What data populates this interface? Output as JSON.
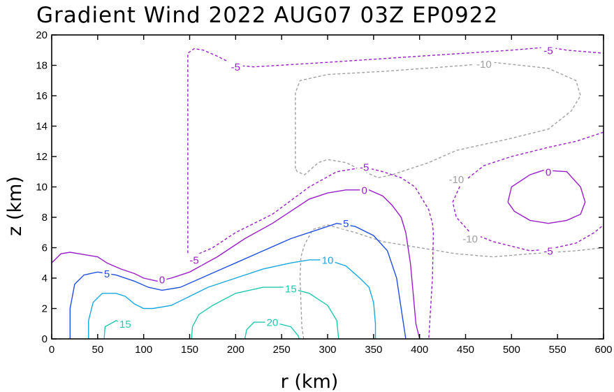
{
  "chart_data": {
    "type": "contour",
    "title": "Gradient Wind 2022 AUG07 03Z  EP0922",
    "xlabel": "r (km)",
    "ylabel": "z (km)",
    "xlim": [
      0,
      600
    ],
    "ylim": [
      0,
      20
    ],
    "xticks": [
      0,
      50,
      100,
      150,
      200,
      250,
      300,
      350,
      400,
      450,
      500,
      550,
      600
    ],
    "yticks": [
      0,
      2,
      4,
      6,
      8,
      10,
      12,
      14,
      16,
      18,
      20
    ],
    "grid": false,
    "levels": [
      {
        "value": -10,
        "label": "-10",
        "color": "#a0a0a0",
        "dashed": true,
        "paths": [
          [
            [
              265,
              11.2
            ],
            [
              265,
              16.2
            ],
            [
              270,
              17.0
            ],
            [
              300,
              17.4
            ],
            [
              360,
              17.6
            ],
            [
              450,
              18.0
            ],
            [
              480,
              18.2
            ],
            [
              540,
              17.8
            ],
            [
              570,
              17.0
            ],
            [
              575,
              16.0
            ],
            [
              565,
              15.0
            ],
            [
              540,
              13.8
            ],
            [
              500,
              13.2
            ],
            [
              470,
              12.8
            ],
            [
              440,
              12.4
            ],
            [
              410,
              11.6
            ],
            [
              390,
              11.2
            ],
            [
              370,
              10.8
            ],
            [
              355,
              10.6
            ],
            [
              340,
              11.0
            ],
            [
              320,
              11.6
            ],
            [
              300,
              11.8
            ],
            [
              290,
              11.6
            ],
            [
              275,
              10.8
            ],
            [
              267,
              11.0
            ],
            [
              265,
              11.2
            ]
          ],
          [
            [
              274,
              0
            ],
            [
              272,
              0.8
            ],
            [
              271,
              2.4
            ],
            [
              270,
              4.0
            ],
            [
              271,
              5.4
            ],
            [
              275,
              6.2
            ],
            [
              284,
              7.2
            ],
            [
              300,
              7.5
            ],
            [
              330,
              7.0
            ],
            [
              360,
              6.4
            ],
            [
              400,
              6.0
            ],
            [
              440,
              5.6
            ],
            [
              480,
              5.4
            ],
            [
              520,
              5.6
            ],
            [
              570,
              5.8
            ],
            [
              600,
              6.0
            ]
          ]
        ]
      },
      {
        "value": -5,
        "label": "-5",
        "color": "#9a1ec8",
        "dashed": true,
        "paths": [
          [
            [
              148,
              5.0
            ],
            [
              148,
              12.0
            ],
            [
              148,
              18.8
            ],
            [
              155,
              19.1
            ],
            [
              165,
              19.0
            ],
            [
              180,
              18.6
            ],
            [
              200,
              18.0
            ],
            [
              220,
              17.9
            ],
            [
              300,
              18.2
            ],
            [
              400,
              18.6
            ],
            [
              450,
              18.8
            ],
            [
              500,
              19.0
            ],
            [
              540,
              19.2
            ],
            [
              560,
              19.0
            ],
            [
              600,
              18.8
            ]
          ],
          [
            [
              148,
              5.0
            ],
            [
              153,
              5.2
            ],
            [
              160,
              5.6
            ],
            [
              175,
              6.0
            ],
            [
              200,
              7.0
            ],
            [
              240,
              8.2
            ],
            [
              280,
              10.0
            ],
            [
              310,
              11.0
            ],
            [
              340,
              11.3
            ],
            [
              360,
              11.0
            ],
            [
              380,
              10.6
            ],
            [
              395,
              10.0
            ],
            [
              410,
              8.5
            ],
            [
              414,
              7.6
            ],
            [
              415,
              7.0
            ],
            [
              414,
              4.0
            ],
            [
              410,
              0.0
            ]
          ],
          [
            [
              600,
              13.6
            ],
            [
              570,
              13.0
            ],
            [
              540,
              12.6
            ],
            [
              500,
              12.0
            ],
            [
              470,
              11.4
            ],
            [
              445,
              10.2
            ],
            [
              436,
              9.0
            ],
            [
              440,
              8.0
            ],
            [
              455,
              7.0
            ],
            [
              480,
              6.4
            ],
            [
              520,
              5.8
            ],
            [
              540,
              5.9
            ],
            [
              570,
              6.3
            ],
            [
              590,
              7.0
            ],
            [
              600,
              7.5
            ]
          ]
        ]
      },
      {
        "value": 0,
        "label": "0",
        "color": "#9a1ec8",
        "dashed": false,
        "paths": [
          [
            [
              0,
              5.0
            ],
            [
              10,
              5.6
            ],
            [
              20,
              5.7
            ],
            [
              30,
              5.6
            ],
            [
              40,
              5.5
            ],
            [
              50,
              5.4
            ],
            [
              60,
              5.0
            ],
            [
              75,
              4.6
            ],
            [
              90,
              4.3
            ],
            [
              100,
              4.0
            ],
            [
              115,
              3.8
            ],
            [
              130,
              4.0
            ],
            [
              150,
              4.4
            ],
            [
              180,
              5.4
            ],
            [
              210,
              6.6
            ],
            [
              240,
              7.6
            ],
            [
              260,
              8.4
            ],
            [
              280,
              9.2
            ],
            [
              300,
              9.6
            ],
            [
              320,
              9.8
            ],
            [
              345,
              9.8
            ],
            [
              360,
              9.4
            ],
            [
              370,
              8.8
            ],
            [
              380,
              8.0
            ],
            [
              385,
              7.0
            ],
            [
              390,
              5.0
            ],
            [
              393,
              3.0
            ],
            [
              396,
              1.0
            ],
            [
              400,
              0.0
            ]
          ],
          [
            [
              496,
              9.0
            ],
            [
              500,
              10.0
            ],
            [
              520,
              10.8
            ],
            [
              535,
              11.1
            ],
            [
              560,
              11.0
            ],
            [
              575,
              10.0
            ],
            [
              580,
              9.0
            ],
            [
              575,
              8.2
            ],
            [
              560,
              7.8
            ],
            [
              540,
              7.6
            ],
            [
              520,
              7.8
            ],
            [
              503,
              8.4
            ],
            [
              496,
              9.0
            ]
          ]
        ]
      },
      {
        "value": 5,
        "label": "5",
        "color": "#2050e0",
        "dashed": false,
        "paths": [
          [
            [
              20,
              0.0
            ],
            [
              20,
              2.0
            ],
            [
              25,
              3.6
            ],
            [
              35,
              4.2
            ],
            [
              50,
              4.4
            ],
            [
              70,
              4.2
            ],
            [
              90,
              3.8
            ],
            [
              105,
              3.4
            ],
            [
              120,
              3.2
            ],
            [
              140,
              3.4
            ],
            [
              170,
              4.2
            ],
            [
              200,
              5.0
            ],
            [
              230,
              5.8
            ],
            [
              260,
              6.6
            ],
            [
              290,
              7.2
            ],
            [
              310,
              7.6
            ],
            [
              330,
              7.4
            ],
            [
              350,
              6.8
            ],
            [
              365,
              5.8
            ],
            [
              375,
              4.0
            ],
            [
              380,
              2.0
            ],
            [
              385,
              0.0
            ]
          ]
        ]
      },
      {
        "value": 10,
        "label": "10",
        "color": "#18a8e0",
        "dashed": false,
        "paths": [
          [
            [
              40,
              0.0
            ],
            [
              40,
              1.2
            ],
            [
              45,
              2.4
            ],
            [
              55,
              3.0
            ],
            [
              70,
              3.0
            ],
            [
              80,
              2.8
            ],
            [
              90,
              2.3
            ],
            [
              100,
              2.0
            ],
            [
              110,
              2.0
            ],
            [
              130,
              2.2
            ],
            [
              150,
              2.8
            ],
            [
              170,
              3.4
            ],
            [
              200,
              4.0
            ],
            [
              230,
              4.6
            ],
            [
              260,
              5.0
            ],
            [
              280,
              5.2
            ],
            [
              300,
              5.2
            ],
            [
              320,
              4.8
            ],
            [
              335,
              4.0
            ],
            [
              345,
              3.4
            ],
            [
              350,
              2.4
            ],
            [
              352,
              1.0
            ],
            [
              352,
              0.0
            ]
          ]
        ]
      },
      {
        "value": 15,
        "label": "15",
        "color": "#20c8b0",
        "dashed": false,
        "paths": [
          [
            [
              152,
              0.0
            ],
            [
              153,
              0.8
            ],
            [
              160,
              1.6
            ],
            [
              175,
              2.2
            ],
            [
              200,
              3.0
            ],
            [
              230,
              3.4
            ],
            [
              255,
              3.4
            ],
            [
              280,
              3.0
            ],
            [
              300,
              2.2
            ],
            [
              310,
              1.2
            ],
            [
              312,
              0.0
            ]
          ],
          [
            [
              57,
              0.0
            ],
            [
              58,
              0.8
            ],
            [
              70,
              1.2
            ],
            [
              80,
              1.0
            ]
          ]
        ]
      },
      {
        "value": 20,
        "label": "20",
        "color": "#20c8b0",
        "dashed": false,
        "paths": [
          [
            [
              210,
              0.0
            ],
            [
              212,
              0.6
            ],
            [
              220,
              1.1
            ],
            [
              240,
              1.1
            ],
            [
              260,
              0.8
            ],
            [
              268,
              0.2
            ],
            [
              269,
              0.0
            ]
          ]
        ]
      }
    ],
    "contour_labels": [
      {
        "text": "-5",
        "x": 540,
        "y": 19.0,
        "color": "#9a1ec8"
      },
      {
        "text": "-5",
        "x": 200,
        "y": 17.9,
        "color": "#9a1ec8"
      },
      {
        "text": "-10",
        "x": 470,
        "y": 18.1,
        "color": "#a0a0a0"
      },
      {
        "text": "-5",
        "x": 340,
        "y": 11.3,
        "color": "#9a1ec8"
      },
      {
        "text": "-10",
        "x": 440,
        "y": 10.5,
        "color": "#a0a0a0"
      },
      {
        "text": "0",
        "x": 540,
        "y": 11.0,
        "color": "#9a1ec8"
      },
      {
        "text": "0",
        "x": 340,
        "y": 9.8,
        "color": "#9a1ec8"
      },
      {
        "text": "-10",
        "x": 455,
        "y": 6.6,
        "color": "#a0a0a0"
      },
      {
        "text": "5",
        "x": 320,
        "y": 7.6,
        "color": "#2050e0"
      },
      {
        "text": "-5",
        "x": 540,
        "y": 5.8,
        "color": "#9a1ec8"
      },
      {
        "text": "-5",
        "x": 155,
        "y": 5.2,
        "color": "#9a1ec8"
      },
      {
        "text": "10",
        "x": 300,
        "y": 5.2,
        "color": "#18a8e0"
      },
      {
        "text": "5",
        "x": 60,
        "y": 4.3,
        "color": "#2050e0"
      },
      {
        "text": "0",
        "x": 120,
        "y": 3.9,
        "color": "#9a1ec8"
      },
      {
        "text": "15",
        "x": 260,
        "y": 3.3,
        "color": "#20c8b0"
      },
      {
        "text": "20",
        "x": 240,
        "y": 1.1,
        "color": "#20c8b0"
      },
      {
        "text": "15",
        "x": 80,
        "y": 1.0,
        "color": "#20c8b0"
      }
    ]
  }
}
